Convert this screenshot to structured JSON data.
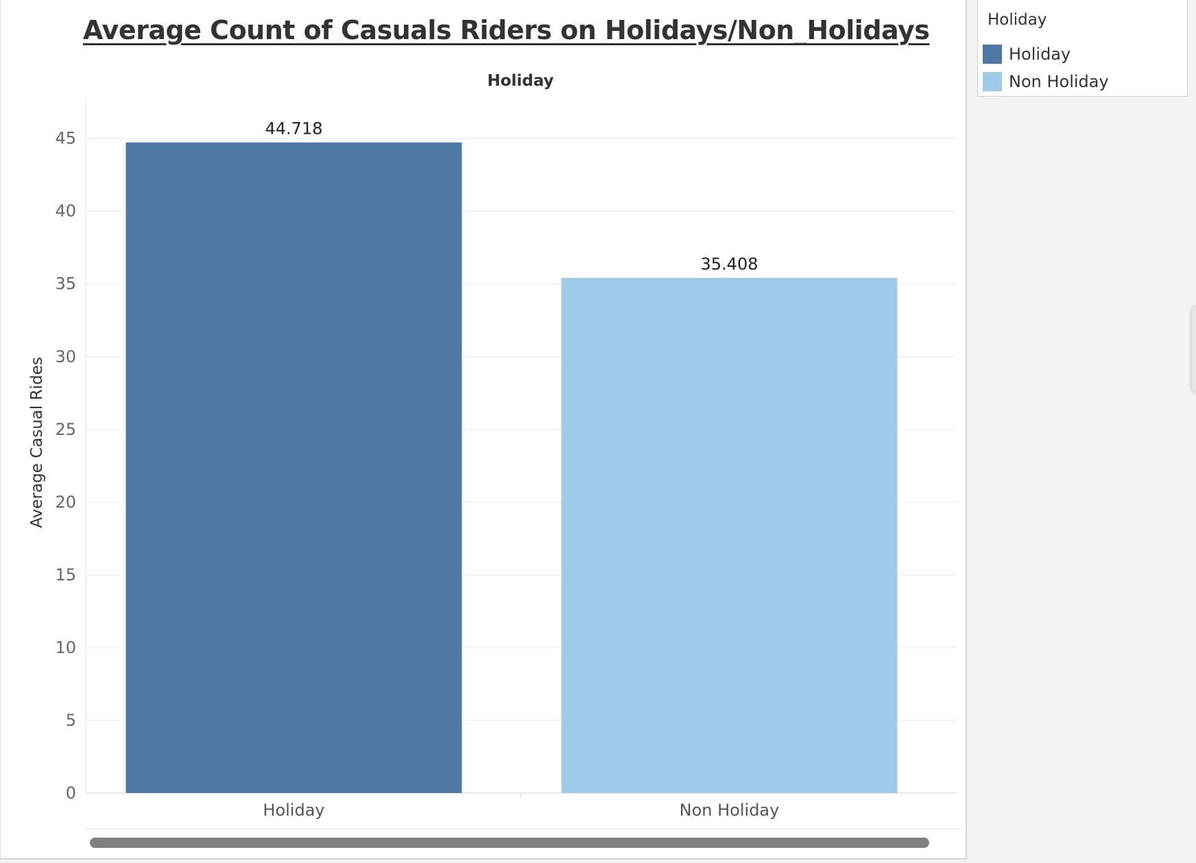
{
  "chart_data": {
    "type": "bar",
    "title": "Average Count of Casuals Riders on Holidays/Non_Holidays",
    "column_header": "Holiday",
    "xlabel": "",
    "ylabel": "Average Casual Rides",
    "categories": [
      "Holiday",
      "Non Holiday"
    ],
    "values": [
      44.718,
      35.408
    ],
    "data_labels": [
      "44.718",
      "35.408"
    ],
    "colors": [
      "#4e79a7",
      "#a0cbe8"
    ],
    "ylim": [
      0,
      48
    ],
    "yticks": [
      0,
      5,
      10,
      15,
      20,
      25,
      30,
      35,
      40,
      45
    ],
    "grid": true,
    "legend_position": "right"
  },
  "legend": {
    "title": "Holiday",
    "items": [
      {
        "label": "Holiday",
        "color": "#4e79a7"
      },
      {
        "label": "Non Holiday",
        "color": "#a0cbe8"
      }
    ]
  }
}
